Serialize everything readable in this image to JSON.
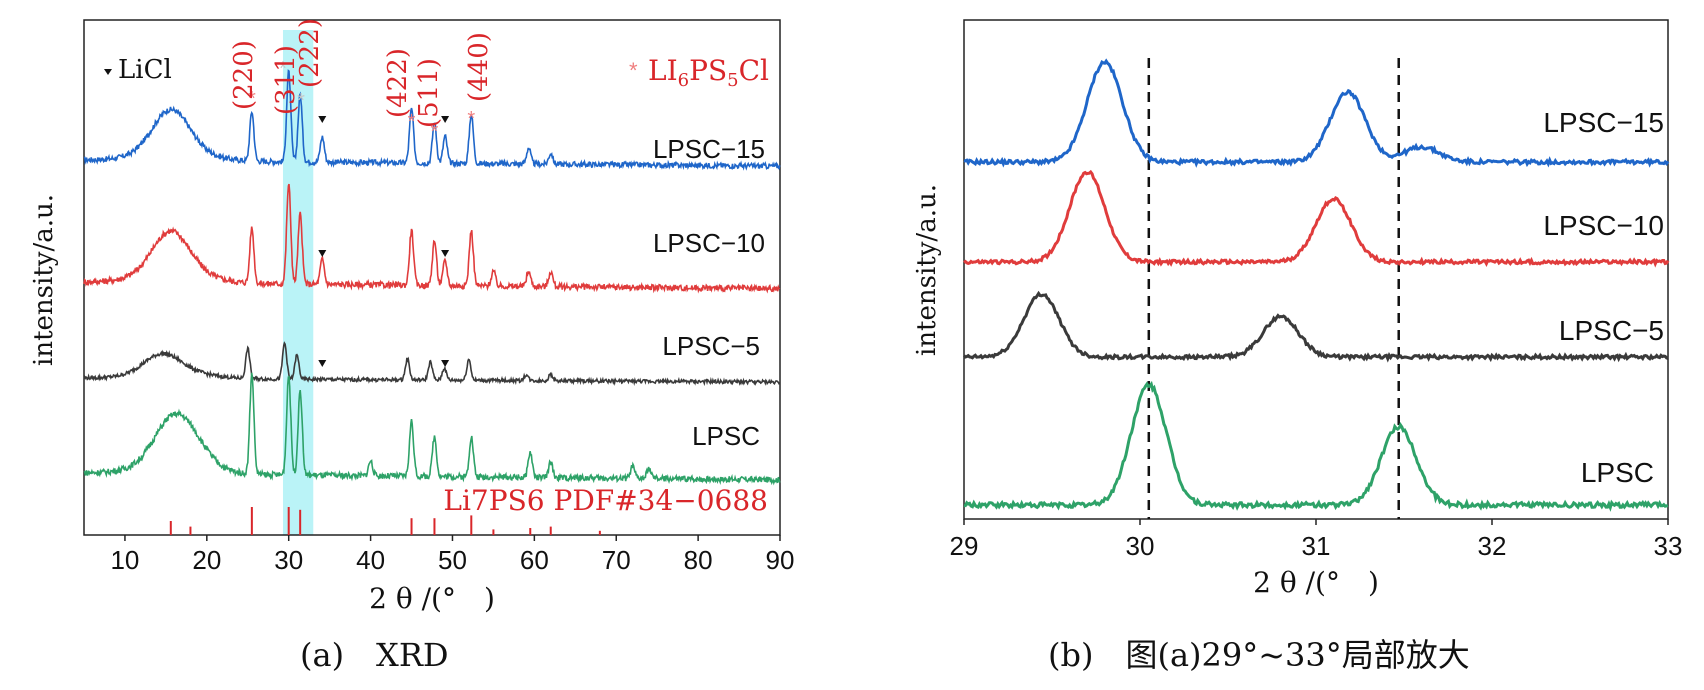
{
  "chart_data": [
    {
      "type": "line",
      "caption": "(a)　XRD",
      "xlabel": "2 θ /(°　)",
      "ylabel": "intensity/a.u.",
      "xlim": [
        5,
        90
      ],
      "xticks": [
        10,
        20,
        30,
        40,
        50,
        60,
        70,
        80,
        90
      ],
      "highlight_band": [
        29.3,
        33.0
      ],
      "colors": {
        "LPSC-15": "#1f66c9",
        "LPSC-10": "#e03c3c",
        "LPSC-5": "#3a3a3a",
        "LPSC": "#2ea268",
        "annot": "#d9262a",
        "band": "#aef1f6"
      },
      "legend": {
        "licl": "LiCl",
        "lps": "LI6PS5Cl",
        "lps_main": "LI",
        "lps_sub1": "6",
        "lps_mid": "PS",
        "lps_sub2": "5",
        "lps_end": "Cl"
      },
      "hkl_labels": [
        {
          "label": "(220)",
          "x": 25.5
        },
        {
          "label": "(311)",
          "x": 30.0
        },
        {
          "label": "(222)",
          "x": 31.5
        },
        {
          "label": "(422)",
          "x": 45.0
        },
        {
          "label": "(511)",
          "x": 47.8
        },
        {
          "label": "(440)",
          "x": 52.3
        }
      ],
      "reference": {
        "label": "Li7PS6  PDF#34-0688",
        "lines": [
          {
            "x": 15.6,
            "h": 0.5
          },
          {
            "x": 18.0,
            "h": 0.3
          },
          {
            "x": 25.5,
            "h": 1.0
          },
          {
            "x": 30.0,
            "h": 1.0
          },
          {
            "x": 31.4,
            "h": 0.9
          },
          {
            "x": 45.0,
            "h": 0.6
          },
          {
            "x": 47.8,
            "h": 0.6
          },
          {
            "x": 52.3,
            "h": 0.7
          },
          {
            "x": 55.0,
            "h": 0.2
          },
          {
            "x": 59.5,
            "h": 0.25
          },
          {
            "x": 62.0,
            "h": 0.3
          },
          {
            "x": 68.0,
            "h": 0.15
          }
        ]
      },
      "series": [
        {
          "name": "LPSC-15",
          "peaks": [
            [
              15.6,
              0.45
            ],
            [
              25.5,
              0.55
            ],
            [
              30.0,
              1.0
            ],
            [
              31.4,
              0.75
            ],
            [
              34.1,
              0.28
            ],
            [
              45.0,
              0.6
            ],
            [
              47.8,
              0.45
            ],
            [
              49.1,
              0.3
            ],
            [
              52.3,
              0.55
            ],
            [
              59.3,
              0.18
            ],
            [
              62.0,
              0.12
            ]
          ],
          "licl_marks": [
            34.1,
            49.1
          ]
        },
        {
          "name": "LPSC-10",
          "peaks": [
            [
              15.6,
              0.4
            ],
            [
              25.5,
              0.55
            ],
            [
              30.0,
              1.0
            ],
            [
              31.4,
              0.7
            ],
            [
              34.1,
              0.25
            ],
            [
              45.0,
              0.55
            ],
            [
              47.8,
              0.45
            ],
            [
              49.1,
              0.25
            ],
            [
              52.3,
              0.55
            ],
            [
              55.0,
              0.15
            ],
            [
              59.3,
              0.15
            ],
            [
              62.0,
              0.15
            ]
          ],
          "licl_marks": [
            34.1,
            49.1
          ]
        },
        {
          "name": "LPSC-5",
          "peaks": [
            [
              14.5,
              0.3
            ],
            [
              25.0,
              0.5
            ],
            [
              29.5,
              0.6
            ],
            [
              31.0,
              0.4
            ],
            [
              44.5,
              0.35
            ],
            [
              47.3,
              0.3
            ],
            [
              49.0,
              0.2
            ],
            [
              52.0,
              0.35
            ],
            [
              59.0,
              0.1
            ],
            [
              62.0,
              0.1
            ]
          ],
          "licl_marks": [
            34.1,
            49.1
          ]
        },
        {
          "name": "LPSC",
          "peaks": [
            [
              15.6,
              0.35
            ],
            [
              18.0,
              0.2
            ],
            [
              25.5,
              1.0
            ],
            [
              30.0,
              1.0
            ],
            [
              31.4,
              0.85
            ],
            [
              40.0,
              0.15
            ],
            [
              45.0,
              0.55
            ],
            [
              47.8,
              0.4
            ],
            [
              52.3,
              0.4
            ],
            [
              59.5,
              0.25
            ],
            [
              62.0,
              0.15
            ],
            [
              72.0,
              0.12
            ],
            [
              74.0,
              0.1
            ]
          ],
          "licl_marks": []
        }
      ]
    },
    {
      "type": "line",
      "caption": "(b)　图(a)29°~33°局部放大",
      "xlabel": "2 θ /(°　)",
      "ylabel": "intensity/a.u.",
      "xlim": [
        29,
        33
      ],
      "xticks": [
        29,
        30,
        31,
        32,
        33
      ],
      "dashed_lines": [
        30.05,
        31.47
      ],
      "series": [
        {
          "name": "LPSC-15",
          "peaks": [
            [
              29.8,
              1.0
            ],
            [
              31.18,
              0.7
            ]
          ]
        },
        {
          "name": "LPSC-10",
          "peaks": [
            [
              29.7,
              1.0
            ],
            [
              31.1,
              0.7
            ]
          ]
        },
        {
          "name": "LPSC-5",
          "peaks": [
            [
              29.44,
              0.7
            ],
            [
              30.8,
              0.45
            ]
          ]
        },
        {
          "name": "LPSC",
          "peaks": [
            [
              30.05,
              1.0
            ],
            [
              31.47,
              0.65
            ]
          ]
        }
      ]
    }
  ]
}
